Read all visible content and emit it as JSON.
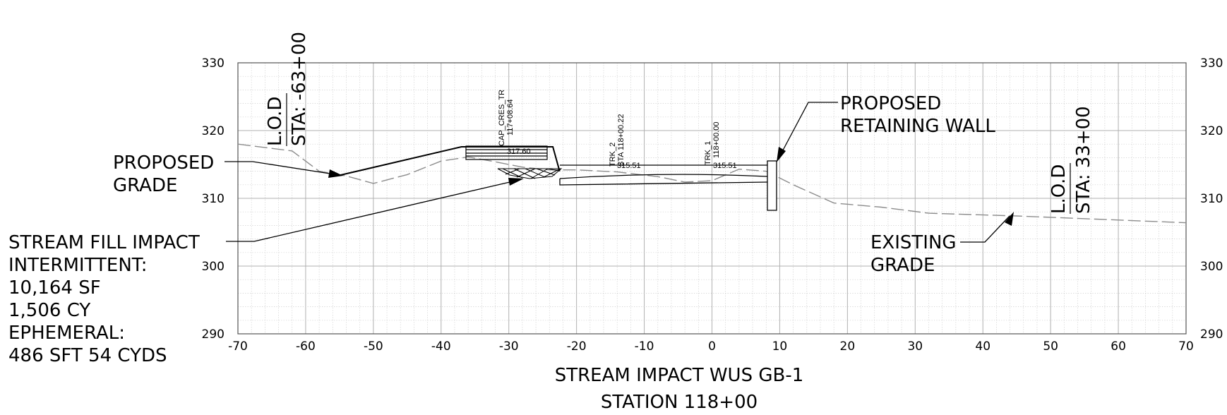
{
  "title_line1": "STREAM IMPACT WUS GB-1",
  "title_line2": "STATION 118+00",
  "x_ticks": [
    "-70",
    "-60",
    "-50",
    "-40",
    "-30",
    "-20",
    "-10",
    "0",
    "10",
    "20",
    "30",
    "40",
    "50",
    "60",
    "70"
  ],
  "y_ticks": [
    "330",
    "320",
    "310",
    "300",
    "290"
  ],
  "labels": {
    "proposed_grade": [
      "PROPOSED",
      "GRADE"
    ],
    "retaining_wall": [
      "PROPOSED",
      "RETAINING WALL"
    ],
    "existing_grade": [
      "EXISTING",
      "GRADE"
    ],
    "stream_fill": [
      "STREAM FILL IMPACT",
      "INTERMITTENT:",
      "10,164 SF",
      "1,506 CY",
      "EPHEMERAL:",
      "486 SFT 54 CYDS"
    ]
  },
  "lod_left": {
    "top": "L.O.D",
    "sta": "STA: -63+00"
  },
  "lod_right": {
    "top": "L.O.D",
    "sta": "STA: 33+00"
  },
  "small_labels": {
    "cap_name": "CAP_CRES_TR",
    "cap_sta": "117+08.64",
    "cap_elev": "317.60",
    "trk2_name": "TRK_2",
    "trk2_sta": "STA 118+00.22",
    "trk2_elev": "315.51",
    "trk1_name": "TRK_1",
    "trk1_sta": "118+00.00",
    "trk1_elev": "315.51"
  },
  "chart_data": {
    "type": "line",
    "title": "STREAM IMPACT WUS GB-1 STATION 118+00",
    "xlim": [
      -70,
      70
    ],
    "ylim": [
      290,
      330
    ],
    "x_major_step": 10,
    "y_major_step": 10,
    "grid": true,
    "series": [
      {
        "name": "EXISTING GRADE",
        "style": "dashed",
        "points": [
          [
            -70,
            318
          ],
          [
            -62,
            317
          ],
          [
            -58,
            314
          ],
          [
            -54,
            313.3
          ],
          [
            -50,
            312.2
          ],
          [
            -45,
            313.5
          ],
          [
            -40,
            315.5
          ],
          [
            -36,
            316.1
          ],
          [
            -32,
            315.4
          ],
          [
            -28,
            314.6
          ],
          [
            -24,
            314.2
          ],
          [
            -20,
            314.2
          ],
          [
            -14,
            313.9
          ],
          [
            -8,
            313.2
          ],
          [
            -4,
            312.4
          ],
          [
            0,
            312.6
          ],
          [
            4,
            314.3
          ],
          [
            8,
            314
          ],
          [
            12,
            312
          ],
          [
            18,
            309.3
          ],
          [
            25,
            308.7
          ],
          [
            32,
            307.8
          ],
          [
            45,
            307.4
          ],
          [
            70,
            306.4
          ]
        ]
      },
      {
        "name": "PROPOSED GRADE",
        "style": "solid",
        "points": [
          [
            -55,
            313.4
          ],
          [
            -37,
            317.6
          ],
          [
            -23.5,
            317.6
          ],
          [
            -22.5,
            314
          ]
        ]
      }
    ],
    "annotations": [
      "PROPOSED GRADE",
      "PROPOSED RETAINING WALL",
      "EXISTING GRADE",
      "STREAM FILL IMPACT"
    ]
  }
}
